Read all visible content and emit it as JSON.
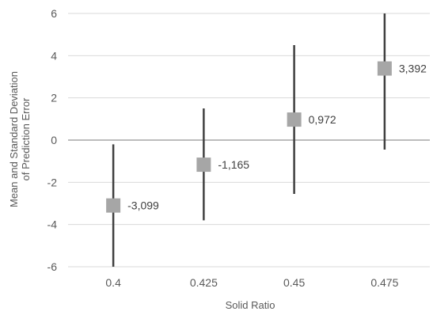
{
  "chart_data": {
    "type": "scatter",
    "title": "",
    "xlabel": "Solid Ratio",
    "ylabel_lines": [
      "Mean and Standard  Deviation",
      "of Prediction Error"
    ],
    "x_tick_labels": [
      "0.4",
      "0.425",
      "0.45",
      "0.475"
    ],
    "y_ticks": [
      6,
      4,
      2,
      0,
      -2,
      -4,
      -6
    ],
    "ylim": [
      -6,
      6
    ],
    "grid": true,
    "legend": "none",
    "series": [
      {
        "x": [
          0.4,
          0.425,
          0.45,
          0.475
        ],
        "mean": [
          -3.099,
          -1.165,
          0.972,
          3.392
        ],
        "labels": [
          "-3,099",
          "-1,165",
          "0,972",
          "3,392"
        ],
        "error_low": [
          -6,
          -3.8,
          -2.55,
          -0.45
        ],
        "error_high": [
          -0.2,
          1.5,
          4.5,
          6
        ]
      }
    ],
    "colors": {
      "marker": "#a6a6a6",
      "errorbar": "#404040",
      "gridline": "#d9d9d9",
      "zeroline": "#a6a6a6"
    }
  }
}
